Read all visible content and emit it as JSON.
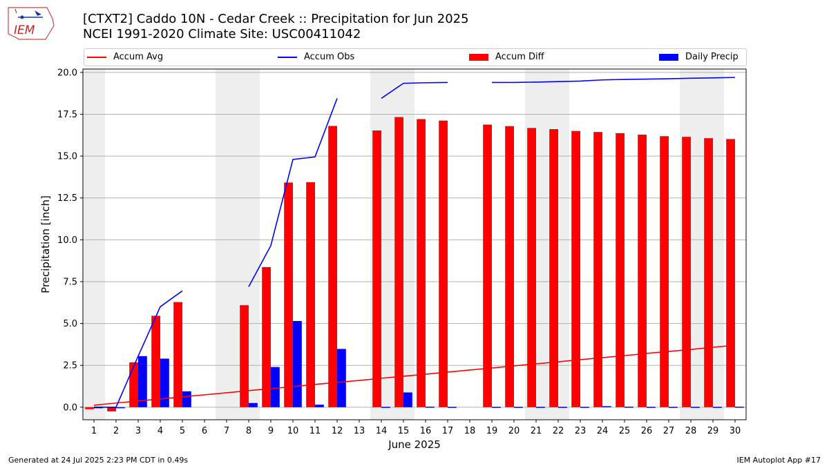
{
  "header": {
    "title_line1": "[CTXT2] Caddo 10N - Cedar Creek :: Precipitation for Jun 2025",
    "title_line2": "NCEI 1991-2020 Climate Site: USC00411042",
    "logo_text": "IEM"
  },
  "footer": {
    "generated": "Generated at 24 Jul 2025 2:23 PM CDT in 0.49s",
    "app": "IEM Autoplot App #17"
  },
  "colors": {
    "accum_avg": "#ff0000",
    "accum_obs": "#0000ff",
    "accum_diff": "#ff0000",
    "daily_precip": "#0000ff",
    "weekend_shade": "#eeeeee",
    "grid": "#b0b0b0"
  },
  "legend": {
    "accum_avg": "Accum Avg",
    "accum_obs": "Accum Obs",
    "accum_diff": "Accum Diff",
    "daily_precip": "Daily Precip"
  },
  "chart_data": {
    "type": "bar",
    "title": "[CTXT2] Caddo 10N - Cedar Creek :: Precipitation for Jun 2025",
    "xlabel": "June 2025",
    "ylabel": "Precipitation [inch]",
    "xlim": [
      0.5,
      30.5
    ],
    "ylim": [
      -0.75,
      20.2
    ],
    "yticks": [
      0.0,
      2.5,
      5.0,
      7.5,
      10.0,
      12.5,
      15.0,
      17.5,
      20.0
    ],
    "ytick_labels": [
      "0.0",
      "2.5",
      "5.0",
      "7.5",
      "10.0",
      "12.5",
      "15.0",
      "17.5",
      "20.0"
    ],
    "days": [
      1,
      2,
      3,
      4,
      5,
      6,
      7,
      8,
      9,
      10,
      11,
      12,
      13,
      14,
      15,
      16,
      17,
      18,
      19,
      20,
      21,
      22,
      23,
      24,
      25,
      26,
      27,
      28,
      29,
      30
    ],
    "weekend_days": [
      1,
      7,
      8,
      14,
      15,
      21,
      22,
      28,
      29
    ],
    "series": [
      {
        "name": "Accum Avg",
        "kind": "line",
        "values": [
          0.12,
          0.25,
          0.37,
          0.49,
          0.62,
          0.74,
          0.86,
          0.99,
          1.11,
          1.23,
          1.36,
          1.48,
          1.6,
          1.73,
          1.85,
          1.97,
          2.1,
          2.22,
          2.34,
          2.47,
          2.59,
          2.71,
          2.84,
          2.96,
          3.08,
          3.21,
          3.33,
          3.45,
          3.58,
          3.7
        ]
      },
      {
        "name": "Accum Obs",
        "kind": "line",
        "values": [
          0.0,
          0.0,
          3.05,
          6.0,
          6.95,
          null,
          null,
          7.2,
          9.65,
          14.8,
          14.95,
          18.45,
          null,
          18.45,
          19.35,
          19.38,
          19.4,
          null,
          19.4,
          19.4,
          19.42,
          19.45,
          19.48,
          19.55,
          19.58,
          19.6,
          19.62,
          19.65,
          19.67,
          19.7
        ]
      },
      {
        "name": "Accum Diff",
        "kind": "bar",
        "values": [
          -0.12,
          -0.25,
          2.68,
          5.46,
          6.28,
          null,
          null,
          6.09,
          8.37,
          13.42,
          13.44,
          16.8,
          null,
          16.53,
          17.33,
          17.21,
          17.12,
          null,
          16.88,
          16.79,
          16.68,
          16.61,
          16.5,
          16.44,
          16.37,
          16.28,
          16.19,
          16.15,
          16.07,
          16.02
        ]
      },
      {
        "name": "Daily Precip",
        "kind": "bar",
        "values": [
          0.0,
          0.0,
          3.05,
          2.9,
          0.95,
          null,
          null,
          0.25,
          2.4,
          5.15,
          0.15,
          3.48,
          null,
          0.02,
          0.88,
          0.03,
          0.02,
          null,
          0.02,
          0.02,
          0.02,
          0.02,
          0.02,
          0.06,
          0.03,
          0.02,
          0.02,
          0.02,
          0.02,
          0.03
        ]
      }
    ]
  }
}
